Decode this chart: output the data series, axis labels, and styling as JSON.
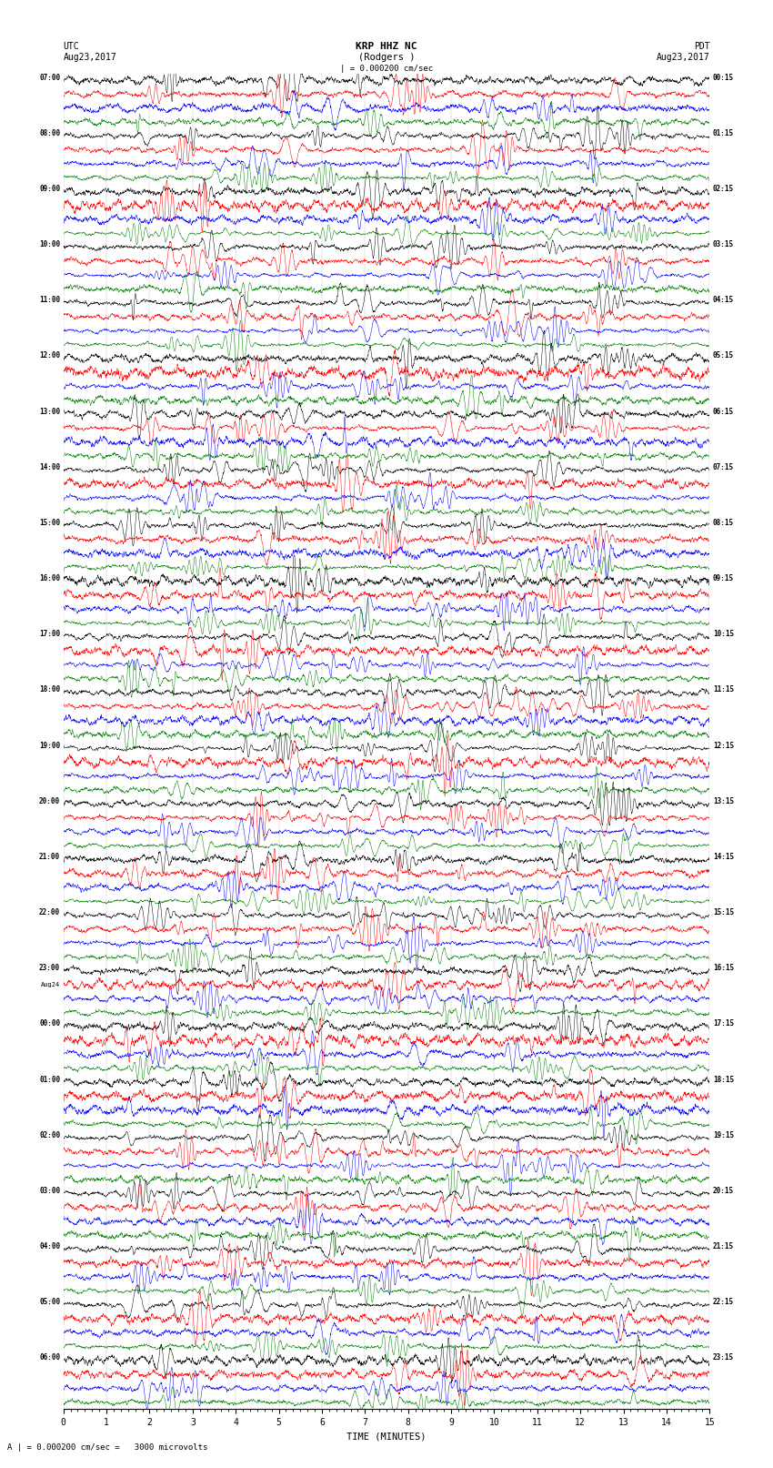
{
  "title_line1": "KRP HHZ NC",
  "title_line2": "(Rodgers )",
  "scale_text": "| = 0.000200 cm/sec",
  "left_label_top": "UTC",
  "left_label_date": "Aug23,2017",
  "right_label_top": "PDT",
  "right_label_date": "Aug23,2017",
  "bottom_label": "TIME (MINUTES)",
  "bottom_note": "A | = 0.000200 cm/sec =   3000 microvolts",
  "xlabel_ticks": [
    0,
    1,
    2,
    3,
    4,
    5,
    6,
    7,
    8,
    9,
    10,
    11,
    12,
    13,
    14,
    15
  ],
  "utc_times": [
    "07:00",
    "08:00",
    "09:00",
    "10:00",
    "11:00",
    "12:00",
    "13:00",
    "14:00",
    "15:00",
    "16:00",
    "17:00",
    "18:00",
    "19:00",
    "20:00",
    "21:00",
    "22:00",
    "23:00",
    "00:00",
    "01:00",
    "02:00",
    "03:00",
    "04:00",
    "05:00",
    "06:00"
  ],
  "pdt_times": [
    "00:15",
    "01:15",
    "02:15",
    "03:15",
    "04:15",
    "05:15",
    "06:15",
    "07:15",
    "08:15",
    "09:15",
    "10:15",
    "11:15",
    "12:15",
    "13:15",
    "14:15",
    "15:15",
    "16:15",
    "17:15",
    "18:15",
    "19:15",
    "20:15",
    "21:15",
    "22:15",
    "23:15"
  ],
  "date_change_hour": 16,
  "aug24_label": "Aug24",
  "n_hours": 24,
  "traces_per_hour": 4,
  "colors": [
    "black",
    "red",
    "blue",
    "green"
  ],
  "bg_color": "white",
  "fig_width": 8.5,
  "fig_height": 16.13,
  "time_points": 3000
}
